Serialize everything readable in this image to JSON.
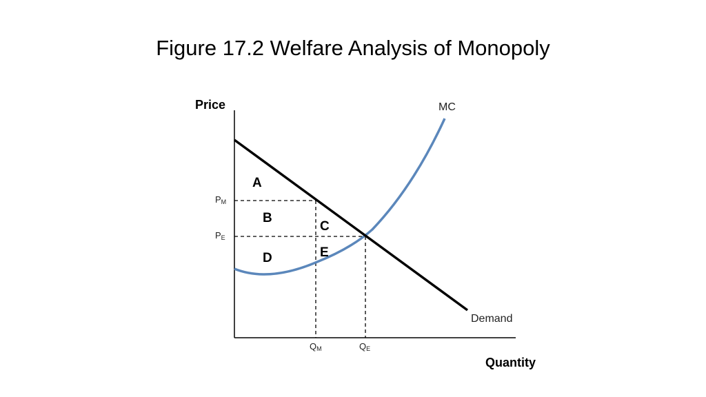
{
  "header": {
    "title": "Figure 17.2 Welfare Analysis of Monopoly"
  },
  "axes": {
    "y_label": "Price",
    "x_label": "Quantity"
  },
  "curves": {
    "mc": "MC",
    "demand": "Demand"
  },
  "levels": {
    "pm": {
      "main": "P",
      "sub": "M"
    },
    "pe": {
      "main": "P",
      "sub": "E"
    },
    "qm": {
      "main": "Q",
      "sub": "M"
    },
    "qe": {
      "main": "Q",
      "sub": "E"
    }
  },
  "regions": [
    "A",
    "B",
    "C",
    "D",
    "E"
  ]
}
